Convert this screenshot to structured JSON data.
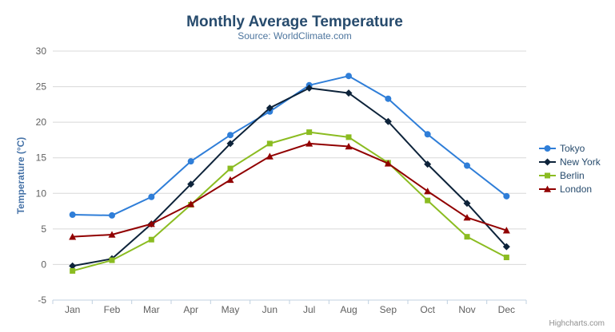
{
  "header": {
    "title": "Monthly Average Temperature",
    "subtitle": "Source: WorldClimate.com"
  },
  "export_menu_icon": "hamburger-menu-icon",
  "credits_label": "Highcharts.com",
  "chart_data": {
    "type": "line",
    "title": "Monthly Average Temperature",
    "subtitle": "Source: WorldClimate.com",
    "categories": [
      "Jan",
      "Feb",
      "Mar",
      "Apr",
      "May",
      "Jun",
      "Jul",
      "Aug",
      "Sep",
      "Oct",
      "Nov",
      "Dec"
    ],
    "xlabel": "",
    "ylabel": "Temperature (°C)",
    "ylim": [
      -5,
      30
    ],
    "ytick_step": 5,
    "grid": true,
    "legend_position": "right",
    "series": [
      {
        "name": "Tokyo",
        "marker": "circle",
        "color": "#2f7ed8",
        "values": [
          7.0,
          6.9,
          9.5,
          14.5,
          18.2,
          21.5,
          25.2,
          26.5,
          23.3,
          18.3,
          13.9,
          9.6
        ]
      },
      {
        "name": "New York",
        "marker": "diamond",
        "color": "#0d233a",
        "values": [
          -0.2,
          0.8,
          5.7,
          11.3,
          17.0,
          22.0,
          24.8,
          24.1,
          20.1,
          14.1,
          8.6,
          2.5
        ]
      },
      {
        "name": "Berlin",
        "marker": "square",
        "color": "#8bbc21",
        "values": [
          -0.9,
          0.6,
          3.5,
          8.4,
          13.5,
          17.0,
          18.6,
          17.9,
          14.3,
          9.0,
          3.9,
          1.0
        ]
      },
      {
        "name": "London",
        "marker": "triangle",
        "color": "#910000",
        "values": [
          3.9,
          4.2,
          5.7,
          8.5,
          11.9,
          15.2,
          17.0,
          16.6,
          14.2,
          10.3,
          6.6,
          4.8
        ]
      }
    ]
  },
  "colors": {
    "title": "#274b6d",
    "subtitle": "#4d759e",
    "axis_title": "#4572a7",
    "tick_label": "#606060",
    "grid_line": "#d8d8d8",
    "axis_line": "#c0d0e0",
    "legend_text": "#274b6d",
    "credits": "#909090",
    "menu_icon": "#666666",
    "background": "#ffffff"
  }
}
